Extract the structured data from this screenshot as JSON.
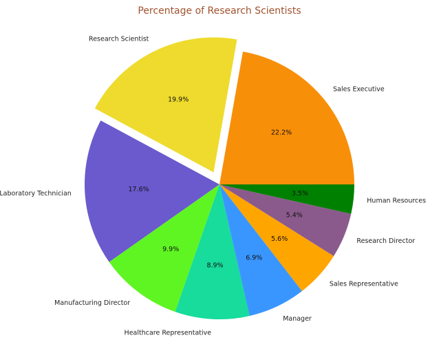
{
  "chart_data": {
    "type": "pie",
    "title": "Percentage of Research Scientists",
    "start_angle_deg": 0,
    "direction": "counterclockwise",
    "slices": [
      {
        "label": "Sales Executive",
        "value": 22.2,
        "pct_label": "22.2%",
        "color": "#f88f09",
        "explode": false
      },
      {
        "label": "Research Scientist",
        "value": 19.9,
        "pct_label": "19.9%",
        "color": "#eedb2d",
        "explode": true
      },
      {
        "label": "Laboratory Technician",
        "value": 17.6,
        "pct_label": "17.6%",
        "color": "#6a5acd",
        "explode": false
      },
      {
        "label": "Manufacturing Director",
        "value": 9.9,
        "pct_label": "9.9%",
        "color": "#5ff523",
        "explode": false
      },
      {
        "label": "Healthcare Representative",
        "value": 8.9,
        "pct_label": "8.9%",
        "color": "#17dc9b",
        "explode": false
      },
      {
        "label": "Manager",
        "value": 6.9,
        "pct_label": "6.9%",
        "color": "#3a96ff",
        "explode": false
      },
      {
        "label": "Sales Representative",
        "value": 5.6,
        "pct_label": "5.6%",
        "color": "#ffa500",
        "explode": false
      },
      {
        "label": "Research Director",
        "value": 5.4,
        "pct_label": "5.4%",
        "color": "#8b5a8c",
        "explode": false
      },
      {
        "label": "Human Resources",
        "value": 3.5,
        "pct_label": "3.5%",
        "color": "#008000",
        "explode": false
      }
    ]
  }
}
